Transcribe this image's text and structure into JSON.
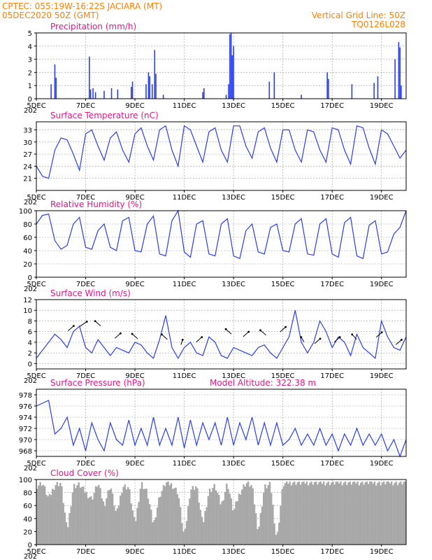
{
  "header": {
    "source_line": "CPTEC:   055:19W-16:22S   JACIARA (MT)",
    "date_line": "05DEC2020 50Z (GMT)",
    "grid_note": "Vertical Grid Line: 50Z",
    "code": "TQ0126L028"
  },
  "x_axis": {
    "ticks": [
      "5DEC",
      "7DEC",
      "9DEC",
      "11DEC",
      "13DEC",
      "15DEC",
      "17DEC",
      "19DEC"
    ],
    "year_stub": "202"
  },
  "colors": {
    "line": "#2b3ee6",
    "bar": "#2b3ee6",
    "cloud": "#a8a8a8",
    "title": "#e0168a",
    "header": "#ff7f00"
  },
  "chart_data": [
    {
      "type": "bar",
      "title": "Precipitation (mm/h)",
      "ylim": [
        0,
        5
      ],
      "yticks": [
        "0",
        "1",
        "2",
        "3",
        "4",
        "5"
      ],
      "x_range_days": [
        5,
        20
      ],
      "bars": [
        {
          "x": 5.6,
          "y": 1.1
        },
        {
          "x": 5.75,
          "y": 2.6
        },
        {
          "x": 5.8,
          "y": 1.6
        },
        {
          "x": 7.15,
          "y": 3.2
        },
        {
          "x": 7.2,
          "y": 0.7
        },
        {
          "x": 7.3,
          "y": 0.8
        },
        {
          "x": 7.4,
          "y": 0.5
        },
        {
          "x": 7.75,
          "y": 0.6
        },
        {
          "x": 8.05,
          "y": 0.8
        },
        {
          "x": 8.3,
          "y": 0.7
        },
        {
          "x": 8.85,
          "y": 0.9
        },
        {
          "x": 8.9,
          "y": 1.3
        },
        {
          "x": 9.45,
          "y": 1.1
        },
        {
          "x": 9.55,
          "y": 2.0
        },
        {
          "x": 9.6,
          "y": 1.7
        },
        {
          "x": 9.7,
          "y": 1.1
        },
        {
          "x": 9.8,
          "y": 3.7
        },
        {
          "x": 9.85,
          "y": 1.9
        },
        {
          "x": 10.15,
          "y": 0.3
        },
        {
          "x": 11.75,
          "y": 0.5
        },
        {
          "x": 11.8,
          "y": 0.8
        },
        {
          "x": 12.7,
          "y": 0.3
        },
        {
          "x": 12.8,
          "y": 1.1
        },
        {
          "x": 12.85,
          "y": 4.9
        },
        {
          "x": 12.9,
          "y": 5.0
        },
        {
          "x": 12.95,
          "y": 3.3
        },
        {
          "x": 13.0,
          "y": 4.0
        },
        {
          "x": 14.45,
          "y": 1.3
        },
        {
          "x": 14.65,
          "y": 2.0
        },
        {
          "x": 15.75,
          "y": 0.3
        },
        {
          "x": 16.8,
          "y": 2.0
        },
        {
          "x": 16.85,
          "y": 1.5
        },
        {
          "x": 17.8,
          "y": 1.1
        },
        {
          "x": 18.7,
          "y": 1.2
        },
        {
          "x": 18.85,
          "y": 1.7
        },
        {
          "x": 19.55,
          "y": 3.0
        },
        {
          "x": 19.7,
          "y": 4.3
        },
        {
          "x": 19.75,
          "y": 3.9
        },
        {
          "x": 19.8,
          "y": 1.0
        }
      ]
    },
    {
      "type": "line",
      "title": "Surface Temperature (nC)",
      "ylim": [
        18,
        35
      ],
      "yticks": [
        "21",
        "24",
        "27",
        "30",
        "33"
      ],
      "ytick_values": [
        21,
        24,
        27,
        30,
        33
      ],
      "x": [
        5.0,
        5.25,
        5.5,
        5.75,
        6.0,
        6.25,
        6.5,
        6.75,
        7.0,
        7.25,
        7.5,
        7.75,
        8.0,
        8.25,
        8.5,
        8.75,
        9.0,
        9.25,
        9.5,
        9.75,
        10.0,
        10.25,
        10.5,
        10.75,
        11.0,
        11.25,
        11.5,
        11.75,
        12.0,
        12.25,
        12.5,
        12.75,
        13.0,
        13.25,
        13.5,
        13.75,
        14.0,
        14.25,
        14.5,
        14.75,
        15.0,
        15.25,
        15.5,
        15.75,
        16.0,
        16.25,
        16.5,
        16.75,
        17.0,
        17.25,
        17.5,
        17.75,
        18.0,
        18.25,
        18.5,
        18.75,
        19.0,
        19.25,
        19.5,
        19.75,
        20.0
      ],
      "values": [
        24,
        21.5,
        21,
        28,
        31,
        30.5,
        27,
        23,
        32,
        33,
        29,
        25.5,
        31,
        32.5,
        28,
        25,
        32,
        33.5,
        29,
        25.5,
        33,
        34,
        28,
        24,
        34,
        33,
        29,
        25,
        32.5,
        33.5,
        28,
        25,
        34,
        34,
        29,
        26,
        32.5,
        33.5,
        28.5,
        25,
        33,
        33,
        28,
        25,
        33,
        32.5,
        28,
        25,
        33.5,
        33,
        28,
        24.5,
        34,
        33.5,
        28.5,
        24.5,
        33,
        32,
        29,
        26,
        28
      ]
    },
    {
      "type": "line",
      "title": "Relative Humidity (%)",
      "ylim": [
        0,
        100
      ],
      "yticks": [
        "0",
        "20",
        "40",
        "60",
        "80",
        "100"
      ],
      "ytick_values": [
        0,
        20,
        40,
        60,
        80,
        100
      ],
      "x": [
        5.0,
        5.25,
        5.5,
        5.75,
        6.0,
        6.25,
        6.5,
        6.75,
        7.0,
        7.25,
        7.5,
        7.75,
        8.0,
        8.25,
        8.5,
        8.75,
        9.0,
        9.25,
        9.5,
        9.75,
        10.0,
        10.25,
        10.5,
        10.75,
        11.0,
        11.25,
        11.5,
        11.75,
        12.0,
        12.25,
        12.5,
        12.75,
        13.0,
        13.25,
        13.5,
        13.75,
        14.0,
        14.25,
        14.5,
        14.75,
        15.0,
        15.25,
        15.5,
        15.75,
        16.0,
        16.25,
        16.5,
        16.75,
        17.0,
        17.25,
        17.5,
        17.75,
        18.0,
        18.25,
        18.5,
        18.75,
        19.0,
        19.25,
        19.5,
        19.75,
        20.0
      ],
      "values": [
        80,
        93,
        95,
        55,
        42,
        48,
        80,
        90,
        45,
        42,
        70,
        80,
        45,
        40,
        85,
        90,
        40,
        38,
        80,
        92,
        35,
        32,
        85,
        100,
        38,
        30,
        80,
        85,
        35,
        32,
        80,
        88,
        32,
        28,
        70,
        80,
        38,
        35,
        75,
        80,
        40,
        38,
        80,
        88,
        35,
        33,
        80,
        88,
        35,
        30,
        82,
        90,
        32,
        28,
        78,
        85,
        35,
        38,
        65,
        75,
        100
      ]
    },
    {
      "type": "line",
      "title": "Surface Wind (m/s)",
      "ylim": [
        -1,
        12
      ],
      "yticks": [
        "0",
        "2",
        "4",
        "6",
        "8",
        "10",
        "12"
      ],
      "ytick_values": [
        0,
        2,
        4,
        6,
        8,
        10,
        12
      ],
      "x": [
        5.0,
        5.25,
        5.5,
        5.75,
        6.0,
        6.25,
        6.5,
        6.75,
        7.0,
        7.25,
        7.5,
        7.75,
        8.0,
        8.25,
        8.5,
        8.75,
        9.0,
        9.25,
        9.5,
        9.75,
        10.0,
        10.25,
        10.5,
        10.75,
        11.0,
        11.25,
        11.5,
        11.75,
        12.0,
        12.25,
        12.5,
        12.75,
        13.0,
        13.25,
        13.5,
        13.75,
        14.0,
        14.25,
        14.5,
        14.75,
        15.0,
        15.25,
        15.5,
        15.75,
        16.0,
        16.25,
        16.5,
        16.75,
        17.0,
        17.25,
        17.5,
        17.75,
        18.0,
        18.25,
        18.5,
        18.75,
        19.0,
        19.25,
        19.5,
        19.75,
        20.0
      ],
      "values": [
        1,
        2.5,
        4,
        5.5,
        4.5,
        3,
        6,
        7,
        3,
        2,
        4.5,
        3,
        1.5,
        3,
        2.5,
        2,
        4,
        3.5,
        2,
        1,
        4.5,
        9,
        3,
        1,
        3,
        4,
        2,
        1.5,
        5,
        4,
        1.5,
        1,
        3,
        2.5,
        2,
        1.5,
        3,
        3.5,
        2,
        1,
        3,
        5,
        10,
        4,
        2,
        4,
        8,
        6,
        3,
        5,
        4,
        1.5,
        5.5,
        3,
        2,
        1,
        8,
        5,
        3,
        2.5,
        5
      ]
    },
    {
      "type": "line",
      "title": "Surface Pressure (hPa)",
      "annotation": "Model Altitude: 322.38 m",
      "ylim": [
        967,
        979
      ],
      "yticks": [
        "968",
        "970",
        "972",
        "974",
        "976",
        "978"
      ],
      "ytick_values": [
        968,
        970,
        972,
        974,
        976,
        978
      ],
      "x": [
        5.0,
        5.25,
        5.5,
        5.75,
        6.0,
        6.25,
        6.5,
        6.75,
        7.0,
        7.25,
        7.5,
        7.75,
        8.0,
        8.25,
        8.5,
        8.75,
        9.0,
        9.25,
        9.5,
        9.75,
        10.0,
        10.25,
        10.5,
        10.75,
        11.0,
        11.25,
        11.5,
        11.75,
        12.0,
        12.25,
        12.5,
        12.75,
        13.0,
        13.25,
        13.5,
        13.75,
        14.0,
        14.25,
        14.5,
        14.75,
        15.0,
        15.25,
        15.5,
        15.75,
        16.0,
        16.25,
        16.5,
        16.75,
        17.0,
        17.25,
        17.5,
        17.75,
        18.0,
        18.25,
        18.5,
        18.75,
        19.0,
        19.25,
        19.5,
        19.75,
        20.0
      ],
      "values": [
        976,
        976.5,
        977,
        971,
        972,
        974,
        969,
        972,
        968,
        973,
        970,
        968,
        973,
        970,
        969,
        973.5,
        969,
        972,
        969,
        974,
        969,
        972,
        969,
        974,
        968.5,
        973.5,
        969,
        973,
        970,
        973,
        969,
        974,
        969,
        973,
        970,
        974,
        969,
        973,
        969,
        973,
        969,
        970,
        972,
        969,
        971,
        969,
        972,
        969,
        971,
        968,
        971,
        969,
        972,
        969,
        971,
        969,
        971,
        968,
        970,
        967,
        970
      ]
    },
    {
      "type": "area",
      "title": "Cloud Cover (%)",
      "ylim": [
        0,
        100
      ],
      "yticks": [
        "0",
        "20",
        "40",
        "60",
        "80",
        "100"
      ],
      "ytick_values": [
        0,
        20,
        40,
        60,
        80,
        100
      ],
      "x": [
        5.0,
        5.25,
        5.5,
        5.75,
        6.0,
        6.25,
        6.5,
        6.75,
        7.0,
        7.25,
        7.5,
        7.75,
        8.0,
        8.25,
        8.5,
        8.75,
        9.0,
        9.25,
        9.5,
        9.75,
        10.0,
        10.25,
        10.5,
        10.75,
        11.0,
        11.25,
        11.5,
        11.75,
        12.0,
        12.25,
        12.5,
        12.75,
        13.0,
        13.25,
        13.5,
        13.75,
        14.0,
        14.25,
        14.5,
        14.75,
        15.0,
        15.25,
        15.5,
        15.75,
        16.0,
        16.25,
        16.5,
        16.75,
        17.0,
        17.25,
        17.5,
        17.75,
        18.0,
        18.25,
        18.5,
        18.75,
        19.0,
        19.25,
        19.5,
        19.75,
        20.0
      ],
      "values": [
        90,
        95,
        70,
        92,
        95,
        20,
        90,
        92,
        80,
        70,
        95,
        60,
        92,
        45,
        90,
        88,
        30,
        95,
        80,
        30,
        75,
        95,
        92,
        80,
        10,
        85,
        90,
        30,
        82,
        90,
        60,
        95,
        50,
        80,
        95,
        90,
        20,
        88,
        92,
        5,
        92,
        96,
        96,
        95,
        96,
        96,
        95,
        96,
        95,
        96,
        96,
        95,
        96,
        96,
        96,
        96,
        95,
        96,
        96,
        95,
        96
      ]
    }
  ]
}
